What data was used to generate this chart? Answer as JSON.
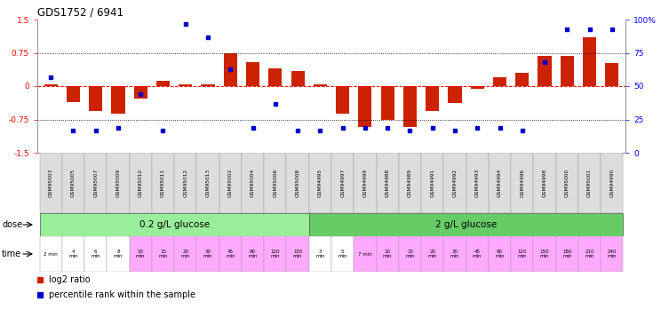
{
  "title": "GDS1752 / 6941",
  "samples": [
    "GSM95003",
    "GSM95005",
    "GSM95007",
    "GSM95009",
    "GSM95010",
    "GSM95011",
    "GSM95012",
    "GSM95013",
    "GSM95002",
    "GSM95004",
    "GSM95006",
    "GSM95008",
    "GSM94995",
    "GSM94997",
    "GSM94999",
    "GSM94988",
    "GSM94989",
    "GSM94991",
    "GSM94992",
    "GSM94993",
    "GSM94994",
    "GSM94996",
    "GSM94998",
    "GSM95000",
    "GSM95001",
    "GSM94990"
  ],
  "log2_ratio": [
    0.05,
    -0.35,
    -0.55,
    -0.62,
    -0.28,
    0.12,
    0.05,
    0.05,
    0.75,
    0.55,
    0.4,
    0.35,
    0.05,
    -0.62,
    -0.92,
    -0.75,
    -0.92,
    -0.55,
    -0.38,
    -0.05,
    0.2,
    0.3,
    0.68,
    0.68,
    1.1,
    0.52
  ],
  "percentile_rank": [
    57,
    17,
    17,
    19,
    44,
    17,
    97,
    87,
    63,
    19,
    37,
    17,
    17,
    19,
    19,
    19,
    17,
    19,
    17,
    19,
    19,
    17,
    68,
    93,
    93,
    93
  ],
  "dose_groups": [
    {
      "label": "0.2 g/L glucose",
      "start": 0,
      "end": 11,
      "color": "#99ee99"
    },
    {
      "label": "2 g/L glucose",
      "start": 12,
      "end": 25,
      "color": "#66cc66"
    }
  ],
  "time_labels": [
    "2 min",
    "4\nmin",
    "6\nmin",
    "8\nmin",
    "10\nmin",
    "15\nmin",
    "20\nmin",
    "30\nmin",
    "45\nmin",
    "90\nmin",
    "120\nmin",
    "150\nmin",
    "3\nmin",
    "5\nmin",
    "7 min",
    "10\nmin",
    "15\nmin",
    "20\nmin",
    "30\nmin",
    "45\nmin",
    "90\nmin",
    "120\nmin",
    "150\nmin",
    "180\nmin",
    "210\nmin",
    "240\nmin"
  ],
  "time_colors": [
    "#ffffff",
    "#ffffff",
    "#ffffff",
    "#ffffff",
    "#ffaaff",
    "#ffaaff",
    "#ffaaff",
    "#ffaaff",
    "#ffaaff",
    "#ffaaff",
    "#ffaaff",
    "#ffaaff",
    "#ffffff",
    "#ffffff",
    "#ffaaff",
    "#ffaaff",
    "#ffaaff",
    "#ffaaff",
    "#ffaaff",
    "#ffaaff",
    "#ffaaff",
    "#ffaaff",
    "#ffaaff",
    "#ffaaff",
    "#ffaaff",
    "#ffaaff"
  ],
  "ylim": [
    -1.5,
    1.5
  ],
  "bar_color": "#cc2200",
  "dot_color": "#0000cc",
  "background_color": "#ffffff"
}
